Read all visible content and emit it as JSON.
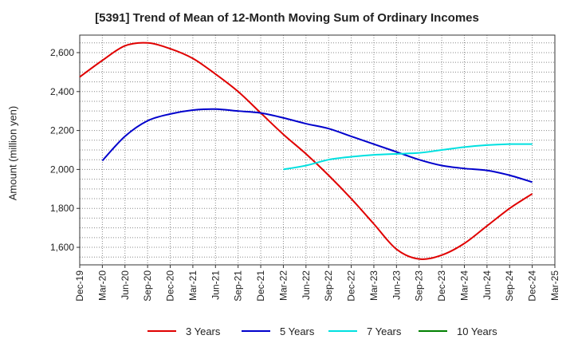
{
  "chart_data": {
    "type": "line",
    "title": "[5391]  Trend of Mean of 12-Month Moving Sum of Ordinary Incomes",
    "xlabel": "",
    "ylabel": "Amount (million yen)",
    "ylim": [
      1510,
      2690
    ],
    "yticks": [
      1600,
      1800,
      2000,
      2200,
      2400,
      2600
    ],
    "ytick_labels": [
      "1,600",
      "1,800",
      "2,000",
      "2,200",
      "2,400",
      "2,600"
    ],
    "categories": [
      "Dec-19",
      "Mar-20",
      "Jun-20",
      "Sep-20",
      "Dec-20",
      "Mar-21",
      "Jun-21",
      "Sep-21",
      "Dec-21",
      "Mar-22",
      "Jun-22",
      "Sep-22",
      "Dec-22",
      "Mar-23",
      "Jun-23",
      "Sep-23",
      "Dec-23",
      "Mar-24",
      "Jun-24",
      "Sep-24",
      "Dec-24",
      "Mar-25"
    ],
    "grid": true,
    "legend_position": "bottom",
    "series": [
      {
        "name": "3 Years",
        "color": "#e00000",
        "values": [
          2475,
          2560,
          2635,
          2650,
          2620,
          2570,
          2490,
          2400,
          2290,
          2180,
          2080,
          1970,
          1850,
          1720,
          1590,
          1540,
          1560,
          1620,
          1710,
          1800,
          1875,
          null
        ]
      },
      {
        "name": "5 Years",
        "color": "#0000cc",
        "values": [
          null,
          2045,
          2170,
          2250,
          2285,
          2305,
          2310,
          2300,
          2290,
          2265,
          2235,
          2210,
          2170,
          2130,
          2090,
          2050,
          2020,
          2005,
          1995,
          1970,
          1935,
          null
        ]
      },
      {
        "name": "7 Years",
        "color": "#00e0e0",
        "values": [
          null,
          null,
          null,
          null,
          null,
          null,
          null,
          null,
          null,
          2000,
          2020,
          2050,
          2065,
          2075,
          2080,
          2085,
          2100,
          2115,
          2125,
          2130,
          2130,
          null
        ]
      },
      {
        "name": "10 Years",
        "color": "#008000",
        "values": [
          null,
          null,
          null,
          null,
          null,
          null,
          null,
          null,
          null,
          null,
          null,
          null,
          null,
          null,
          null,
          null,
          null,
          null,
          null,
          null,
          null,
          null
        ]
      }
    ]
  }
}
